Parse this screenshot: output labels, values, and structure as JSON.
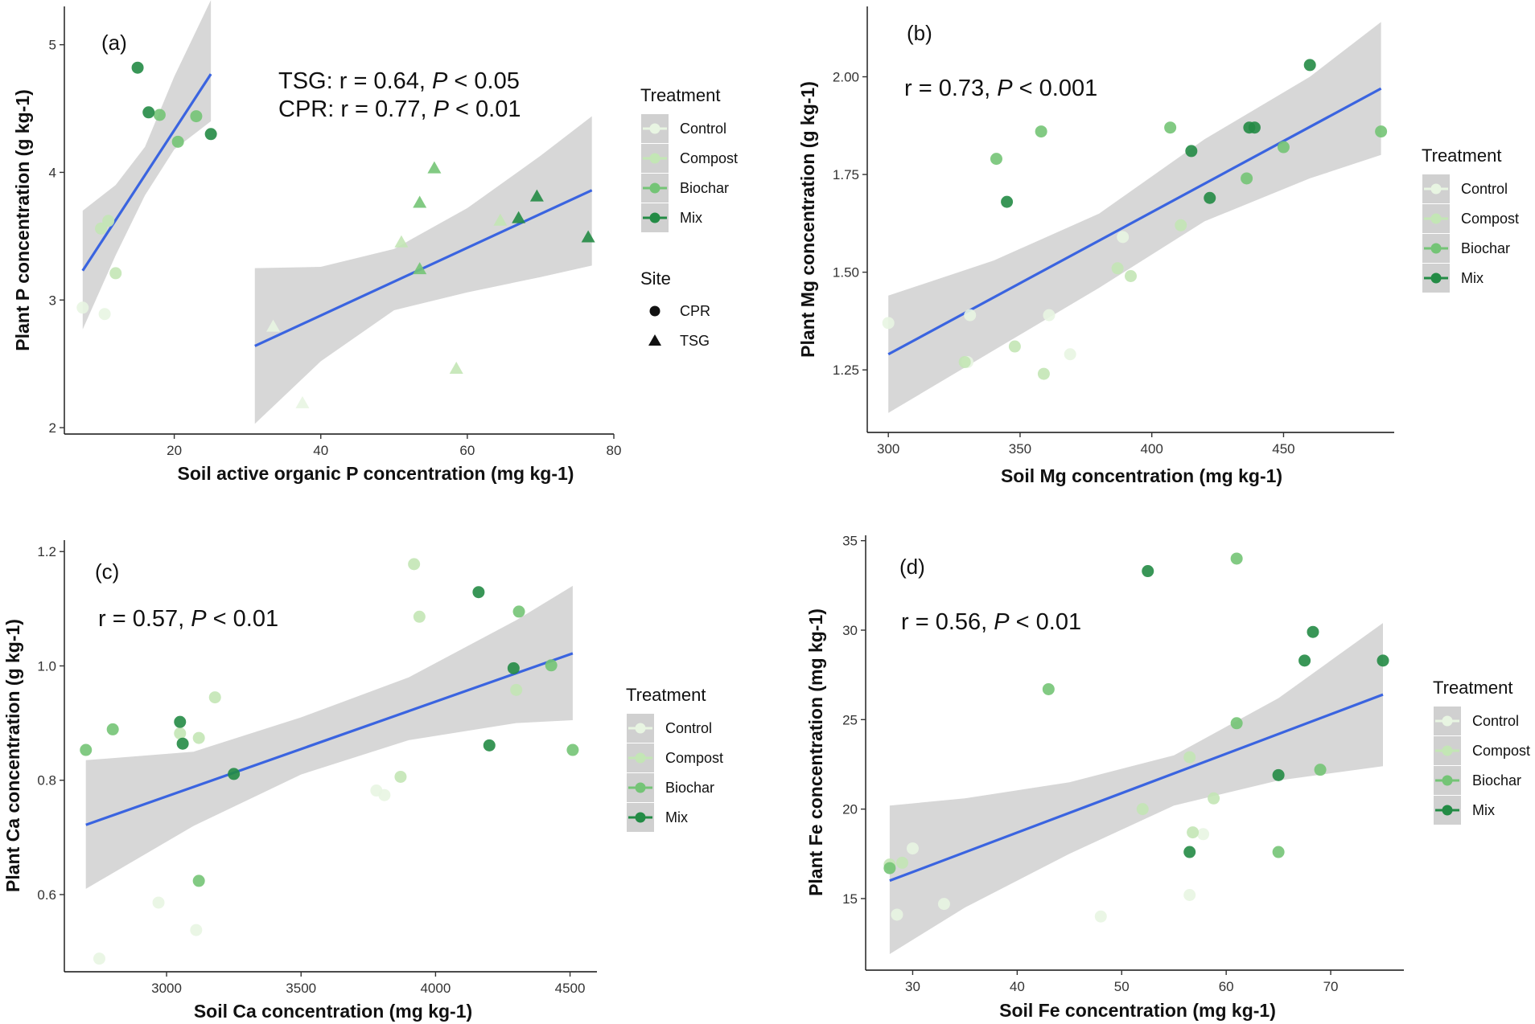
{
  "figure": {
    "panel_count": 4
  },
  "legend": {
    "treatment_title": "Treatment",
    "site_title": "Site",
    "treatments": [
      {
        "name": "Control",
        "color": "#e8f5e2"
      },
      {
        "name": "Compost",
        "color": "#c3e6b5"
      },
      {
        "name": "Biochar",
        "color": "#74c476"
      },
      {
        "name": "Mix",
        "color": "#238b45"
      }
    ],
    "sites": [
      {
        "name": "CPR",
        "shape": "circle"
      },
      {
        "name": "TSG",
        "shape": "triangle"
      }
    ],
    "ribbon_color": "#d0d0d0",
    "line_color": "#3a64e0"
  },
  "chart_data": [
    {
      "type": "scatter",
      "panel": "(a)",
      "xlabel": "Soil active organic P concentration (mg kg-1)",
      "ylabel": "Plant P concentration (g kg-1)",
      "xlim": [
        5,
        80
      ],
      "ylim": [
        1.95,
        5.3
      ],
      "xticks": [
        20,
        40,
        60,
        80
      ],
      "yticks": [
        2,
        3,
        4,
        5
      ],
      "annotations": [
        {
          "site": "TSG",
          "prefix": "TSG: r = 0.64, ",
          "italic": "P",
          "suffix": " < 0.05"
        },
        {
          "site": "CPR",
          "prefix": "CPR: r = 0.77, ",
          "italic": "P",
          "suffix": " < 0.01"
        }
      ],
      "fits": [
        {
          "site": "CPR",
          "x": [
            7.5,
            25
          ],
          "y": [
            3.23,
            4.77
          ],
          "band_x": [
            7.5,
            12,
            16,
            20,
            25
          ],
          "band_lower": [
            2.77,
            3.35,
            3.82,
            4.18,
            4.4
          ],
          "band_upper": [
            3.7,
            3.9,
            4.2,
            4.75,
            5.35
          ]
        },
        {
          "site": "TSG",
          "x": [
            31,
            77
          ],
          "y": [
            2.64,
            3.86
          ],
          "band_x": [
            31,
            40,
            50,
            60,
            70,
            77
          ],
          "band_lower": [
            2.03,
            2.52,
            2.92,
            3.06,
            3.18,
            3.27
          ],
          "band_upper": [
            3.25,
            3.26,
            3.4,
            3.72,
            4.13,
            4.44
          ]
        }
      ],
      "series": [
        {
          "name": "CPR",
          "shape": "circle",
          "points": [
            {
              "x": 7.5,
              "y": 2.94,
              "treatment": "Control"
            },
            {
              "x": 10.5,
              "y": 2.89,
              "treatment": "Control"
            },
            {
              "x": 10.0,
              "y": 3.56,
              "treatment": "Compost"
            },
            {
              "x": 11.0,
              "y": 3.62,
              "treatment": "Compost"
            },
            {
              "x": 12.0,
              "y": 3.21,
              "treatment": "Compost"
            },
            {
              "x": 18.0,
              "y": 4.45,
              "treatment": "Biochar"
            },
            {
              "x": 20.5,
              "y": 4.24,
              "treatment": "Biochar"
            },
            {
              "x": 23.0,
              "y": 4.44,
              "treatment": "Biochar"
            },
            {
              "x": 15.0,
              "y": 4.82,
              "treatment": "Mix"
            },
            {
              "x": 16.5,
              "y": 4.47,
              "treatment": "Mix"
            },
            {
              "x": 25.0,
              "y": 4.3,
              "treatment": "Mix"
            }
          ]
        },
        {
          "name": "TSG",
          "shape": "triangle",
          "points": [
            {
              "x": 33.5,
              "y": 2.79,
              "treatment": "Control"
            },
            {
              "x": 37.5,
              "y": 2.19,
              "treatment": "Control"
            },
            {
              "x": 51.0,
              "y": 3.45,
              "treatment": "Compost"
            },
            {
              "x": 58.5,
              "y": 2.46,
              "treatment": "Compost"
            },
            {
              "x": 64.5,
              "y": 3.62,
              "treatment": "Compost"
            },
            {
              "x": 53.5,
              "y": 3.76,
              "treatment": "Biochar"
            },
            {
              "x": 53.5,
              "y": 3.24,
              "treatment": "Biochar"
            },
            {
              "x": 55.5,
              "y": 4.03,
              "treatment": "Biochar"
            },
            {
              "x": 67.0,
              "y": 3.64,
              "treatment": "Mix"
            },
            {
              "x": 69.5,
              "y": 3.81,
              "treatment": "Mix"
            },
            {
              "x": 76.5,
              "y": 3.49,
              "treatment": "Mix"
            }
          ]
        }
      ]
    },
    {
      "type": "scatter",
      "panel": "(b)",
      "xlabel": "Soil Mg concentration (mg kg-1)",
      "ylabel": "Plant Mg concentration (g kg-1)",
      "xlim": [
        292,
        492
      ],
      "ylim": [
        1.09,
        2.18
      ],
      "xticks": [
        300,
        350,
        400,
        450
      ],
      "yticks": [
        1.25,
        1.5,
        1.75,
        2.0
      ],
      "ytick_labels": [
        "1.25",
        "1.50",
        "1.75",
        "2.00"
      ],
      "annotations": [
        {
          "prefix": "r = 0.73, ",
          "italic": "P",
          "suffix": " < 0.001"
        }
      ],
      "fits": [
        {
          "x": [
            300,
            487
          ],
          "y": [
            1.29,
            1.97
          ],
          "band_x": [
            300,
            340,
            380,
            420,
            460,
            487
          ],
          "band_lower": [
            1.14,
            1.3,
            1.46,
            1.63,
            1.74,
            1.8
          ],
          "band_upper": [
            1.44,
            1.53,
            1.65,
            1.84,
            2.0,
            2.14
          ]
        }
      ],
      "series": [
        {
          "name": "CPR",
          "shape": "circle",
          "points": [
            {
              "x": 300,
              "y": 1.37,
              "treatment": "Control"
            },
            {
              "x": 331,
              "y": 1.39,
              "treatment": "Control"
            },
            {
              "x": 330,
              "y": 1.27,
              "treatment": "Control"
            },
            {
              "x": 361,
              "y": 1.39,
              "treatment": "Control"
            },
            {
              "x": 369,
              "y": 1.29,
              "treatment": "Control"
            },
            {
              "x": 389,
              "y": 1.59,
              "treatment": "Control"
            },
            {
              "x": 329,
              "y": 1.27,
              "treatment": "Compost"
            },
            {
              "x": 348,
              "y": 1.31,
              "treatment": "Compost"
            },
            {
              "x": 359,
              "y": 1.24,
              "treatment": "Compost"
            },
            {
              "x": 387,
              "y": 1.51,
              "treatment": "Compost"
            },
            {
              "x": 392,
              "y": 1.49,
              "treatment": "Compost"
            },
            {
              "x": 411,
              "y": 1.62,
              "treatment": "Compost"
            },
            {
              "x": 341,
              "y": 1.79,
              "treatment": "Biochar"
            },
            {
              "x": 358,
              "y": 1.86,
              "treatment": "Biochar"
            },
            {
              "x": 407,
              "y": 1.87,
              "treatment": "Biochar"
            },
            {
              "x": 436,
              "y": 1.74,
              "treatment": "Biochar"
            },
            {
              "x": 450,
              "y": 1.82,
              "treatment": "Biochar"
            },
            {
              "x": 487,
              "y": 1.86,
              "treatment": "Biochar"
            },
            {
              "x": 345,
              "y": 1.68,
              "treatment": "Mix"
            },
            {
              "x": 415,
              "y": 1.81,
              "treatment": "Mix"
            },
            {
              "x": 422,
              "y": 1.69,
              "treatment": "Mix"
            },
            {
              "x": 437,
              "y": 1.87,
              "treatment": "Mix"
            },
            {
              "x": 439,
              "y": 1.87,
              "treatment": "Mix"
            },
            {
              "x": 460,
              "y": 2.03,
              "treatment": "Mix"
            }
          ]
        }
      ]
    },
    {
      "type": "scatter",
      "panel": "(c)",
      "xlabel": "Soil Ca concentration (mg kg-1)",
      "ylabel": "Plant Ca concentration (g kg-1)",
      "xlim": [
        2620,
        4600
      ],
      "ylim": [
        0.465,
        1.22
      ],
      "xticks": [
        3000,
        3500,
        4000,
        4500
      ],
      "yticks": [
        0.6,
        0.8,
        1.0,
        1.2
      ],
      "ytick_labels": [
        "0.6",
        "0.8",
        "1.0",
        "1.2"
      ],
      "annotations": [
        {
          "prefix": "r = 0.57, ",
          "italic": "P",
          "suffix": " < 0.01"
        }
      ],
      "fits": [
        {
          "x": [
            2700,
            4510
          ],
          "y": [
            0.722,
            1.022
          ],
          "band_x": [
            2700,
            3100,
            3500,
            3900,
            4300,
            4510
          ],
          "band_lower": [
            0.61,
            0.72,
            0.81,
            0.87,
            0.9,
            0.905
          ],
          "band_upper": [
            0.835,
            0.85,
            0.91,
            0.98,
            1.08,
            1.14
          ]
        }
      ],
      "series": [
        {
          "name": "CPR",
          "shape": "circle",
          "points": [
            {
              "x": 2750,
              "y": 0.488,
              "treatment": "Control"
            },
            {
              "x": 2970,
              "y": 0.586,
              "treatment": "Control"
            },
            {
              "x": 3110,
              "y": 0.538,
              "treatment": "Control"
            },
            {
              "x": 3780,
              "y": 0.782,
              "treatment": "Control"
            },
            {
              "x": 3810,
              "y": 0.774,
              "treatment": "Control"
            },
            {
              "x": 3050,
              "y": 0.882,
              "treatment": "Compost"
            },
            {
              "x": 3120,
              "y": 0.874,
              "treatment": "Compost"
            },
            {
              "x": 3180,
              "y": 0.945,
              "treatment": "Compost"
            },
            {
              "x": 3870,
              "y": 0.806,
              "treatment": "Compost"
            },
            {
              "x": 3920,
              "y": 1.178,
              "treatment": "Compost"
            },
            {
              "x": 3940,
              "y": 1.086,
              "treatment": "Compost"
            },
            {
              "x": 4300,
              "y": 0.958,
              "treatment": "Compost"
            },
            {
              "x": 2700,
              "y": 0.853,
              "treatment": "Biochar"
            },
            {
              "x": 2800,
              "y": 0.889,
              "treatment": "Biochar"
            },
            {
              "x": 3120,
              "y": 0.624,
              "treatment": "Biochar"
            },
            {
              "x": 4310,
              "y": 1.095,
              "treatment": "Biochar"
            },
            {
              "x": 4430,
              "y": 1.001,
              "treatment": "Biochar"
            },
            {
              "x": 4510,
              "y": 0.853,
              "treatment": "Biochar"
            },
            {
              "x": 3050,
              "y": 0.902,
              "treatment": "Mix"
            },
            {
              "x": 3060,
              "y": 0.864,
              "treatment": "Mix"
            },
            {
              "x": 3250,
              "y": 0.811,
              "treatment": "Mix"
            },
            {
              "x": 4160,
              "y": 1.129,
              "treatment": "Mix"
            },
            {
              "x": 4200,
              "y": 0.861,
              "treatment": "Mix"
            },
            {
              "x": 4290,
              "y": 0.996,
              "treatment": "Mix"
            }
          ]
        }
      ]
    },
    {
      "type": "scatter",
      "panel": "(d)",
      "xlabel": "Soil Fe concentration (mg kg-1)",
      "ylabel": "Plant Fe concentration (mg kg-1)",
      "xlim": [
        25.5,
        77
      ],
      "ylim": [
        11.0,
        35.3
      ],
      "xticks": [
        30,
        40,
        50,
        60,
        70
      ],
      "yticks": [
        15,
        20,
        25,
        30,
        35
      ],
      "annotations": [
        {
          "prefix": "r = 0.56, ",
          "italic": "P",
          "suffix": " < 0.01"
        }
      ],
      "fits": [
        {
          "x": [
            27.8,
            75
          ],
          "y": [
            16.0,
            26.4
          ],
          "band_x": [
            27.8,
            35,
            45,
            55,
            65,
            75
          ],
          "band_lower": [
            11.9,
            14.5,
            17.5,
            20.2,
            21.6,
            22.4
          ],
          "band_upper": [
            20.2,
            20.6,
            21.5,
            23.0,
            26.2,
            30.4
          ]
        }
      ],
      "series": [
        {
          "name": "CPR",
          "shape": "circle",
          "points": [
            {
              "x": 28.5,
              "y": 14.1,
              "treatment": "Control"
            },
            {
              "x": 30.0,
              "y": 17.8,
              "treatment": "Control"
            },
            {
              "x": 33.0,
              "y": 14.7,
              "treatment": "Control"
            },
            {
              "x": 48.0,
              "y": 14.0,
              "treatment": "Control"
            },
            {
              "x": 56.5,
              "y": 15.2,
              "treatment": "Control"
            },
            {
              "x": 57.8,
              "y": 18.6,
              "treatment": "Control"
            },
            {
              "x": 27.8,
              "y": 16.9,
              "treatment": "Compost"
            },
            {
              "x": 29.0,
              "y": 17.0,
              "treatment": "Compost"
            },
            {
              "x": 52.0,
              "y": 20.0,
              "treatment": "Compost"
            },
            {
              "x": 56.8,
              "y": 18.7,
              "treatment": "Compost"
            },
            {
              "x": 58.8,
              "y": 20.6,
              "treatment": "Compost"
            },
            {
              "x": 56.5,
              "y": 22.9,
              "treatment": "Compost"
            },
            {
              "x": 27.8,
              "y": 16.7,
              "treatment": "Biochar"
            },
            {
              "x": 43.0,
              "y": 26.7,
              "treatment": "Biochar"
            },
            {
              "x": 61.0,
              "y": 34.0,
              "treatment": "Biochar"
            },
            {
              "x": 61.0,
              "y": 24.8,
              "treatment": "Biochar"
            },
            {
              "x": 65.0,
              "y": 17.6,
              "treatment": "Biochar"
            },
            {
              "x": 69.0,
              "y": 22.2,
              "treatment": "Biochar"
            },
            {
              "x": 52.5,
              "y": 33.3,
              "treatment": "Mix"
            },
            {
              "x": 56.5,
              "y": 17.6,
              "treatment": "Mix"
            },
            {
              "x": 65.0,
              "y": 21.9,
              "treatment": "Mix"
            },
            {
              "x": 67.5,
              "y": 28.3,
              "treatment": "Mix"
            },
            {
              "x": 68.3,
              "y": 29.9,
              "treatment": "Mix"
            },
            {
              "x": 75.0,
              "y": 28.3,
              "treatment": "Mix"
            }
          ]
        }
      ]
    }
  ]
}
